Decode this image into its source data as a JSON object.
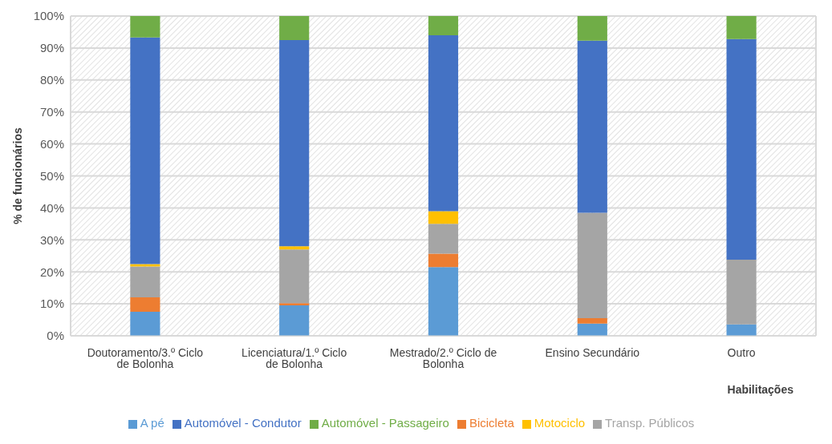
{
  "chart_data": {
    "type": "bar",
    "stacked": true,
    "xlabel": "Habilitações",
    "ylabel": "% de funcionários",
    "categories": [
      "Doutoramento/3.º Ciclo de Bolonha",
      "Licenciatura/1.º Ciclo de Bolonha",
      "Mestrado/2.º Ciclo de Bolonha",
      "Ensino Secundário",
      "Outro"
    ],
    "series": [
      {
        "name": "A pé",
        "color": "#5b9bd5",
        "values": [
          7.5,
          9.5,
          21.5,
          3.8,
          3.6
        ]
      },
      {
        "name": "Bicicleta",
        "color": "#ed7d31",
        "values": [
          4.5,
          0.7,
          4.2,
          1.7,
          0
        ]
      },
      {
        "name": "Transp. Públicos",
        "color": "#a5a5a5",
        "values": [
          9.7,
          16.8,
          9.3,
          33,
          20.2
        ]
      },
      {
        "name": "Motociclo",
        "color": "#ffc000",
        "values": [
          0.7,
          1.0,
          4.0,
          0,
          0
        ]
      },
      {
        "name": "Automóvel - Condutor",
        "color": "#4472c4",
        "values": [
          70.9,
          64.5,
          55,
          53.8,
          69
        ]
      },
      {
        "name": "Automóvel - Passageiro",
        "color": "#70ad47",
        "values": [
          6.7,
          7.5,
          6.0,
          7.7,
          7.2
        ]
      }
    ],
    "ylim": [
      0,
      100
    ],
    "yticks": [
      {
        "value": 0,
        "label": "0%"
      },
      {
        "value": 10,
        "label": "10%"
      },
      {
        "value": 20,
        "label": "20%"
      },
      {
        "value": 30,
        "label": "30%"
      },
      {
        "value": 40,
        "label": "40%"
      },
      {
        "value": 50,
        "label": "50%"
      },
      {
        "value": 60,
        "label": "60%"
      },
      {
        "value": 70,
        "label": "70%"
      },
      {
        "value": 80,
        "label": "80%"
      },
      {
        "value": 90,
        "label": "90%"
      },
      {
        "value": 100,
        "label": "100%"
      }
    ],
    "grid": true,
    "legend": "bottom"
  }
}
